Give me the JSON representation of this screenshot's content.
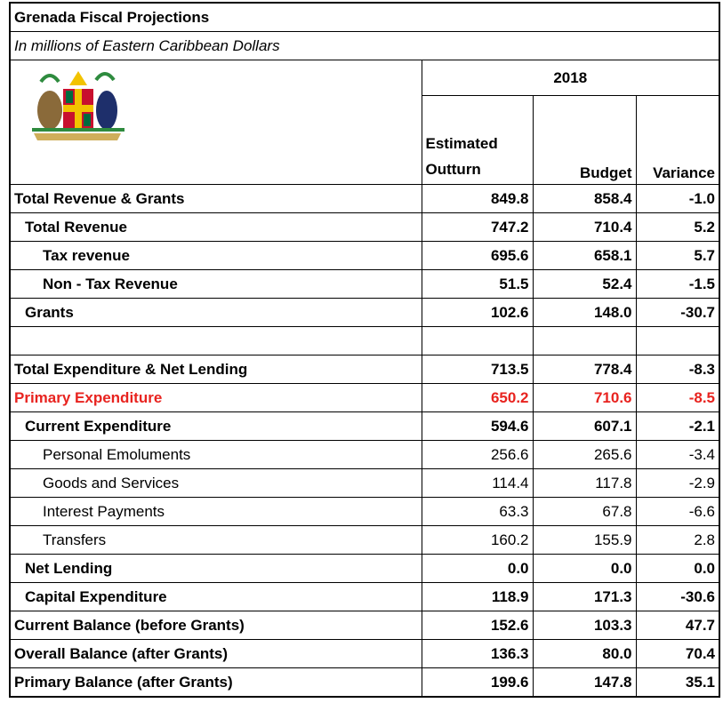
{
  "header": {
    "title": "Grenada Fiscal Projections",
    "subtitle": "In millions of Eastern Caribbean Dollars",
    "year": "2018",
    "columns": [
      "Estimated Outturn",
      "Budget",
      "Variance"
    ]
  },
  "table": {
    "rows": [
      [
        "Total Revenue & Grants",
        "849.8",
        "858.4",
        "-1.0"
      ],
      [
        "Total Revenue",
        "747.2",
        "710.4",
        "5.2"
      ],
      [
        "Tax revenue",
        "695.6",
        "658.1",
        "5.7"
      ],
      [
        "Non - Tax Revenue",
        "51.5",
        "52.4",
        "-1.5"
      ],
      [
        "Grants",
        "102.6",
        "148.0",
        "-30.7"
      ],
      [
        "Total Expenditure & Net Lending",
        "713.5",
        "778.4",
        "-8.3"
      ],
      [
        "Primary Expenditure",
        "650.2",
        "710.6",
        "-8.5"
      ],
      [
        "Current Expenditure",
        "594.6",
        "607.1",
        "-2.1"
      ],
      [
        "Personal Emoluments",
        "256.6",
        "265.6",
        "-3.4"
      ],
      [
        "Goods and Services",
        "114.4",
        "117.8",
        "-2.9"
      ],
      [
        "Interest Payments",
        "63.3",
        "67.8",
        "-6.6"
      ],
      [
        "Transfers",
        "160.2",
        "155.9",
        "2.8"
      ],
      [
        "Net Lending",
        "0.0",
        "0.0",
        "0.0"
      ],
      [
        "Capital Expenditure",
        "118.9",
        "171.3",
        "-30.6"
      ],
      [
        "Current Balance (before Grants)",
        "152.6",
        "103.3",
        "47.7"
      ],
      [
        "Overall Balance (after Grants)",
        "136.3",
        "80.0",
        "70.4"
      ],
      [
        "Primary Balance (after Grants)",
        "199.6",
        "147.8",
        "35.1"
      ]
    ]
  }
}
